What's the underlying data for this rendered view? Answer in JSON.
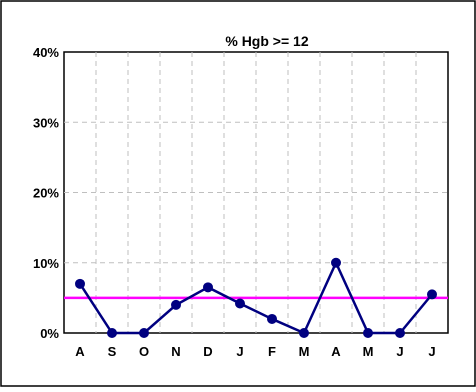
{
  "chart_data": {
    "type": "line",
    "title": "% Hgb >= 12",
    "xlabel": "",
    "ylabel": "",
    "categories": [
      "A",
      "S",
      "O",
      "N",
      "D",
      "J",
      "F",
      "M",
      "A",
      "M",
      "J",
      "J"
    ],
    "series": [
      {
        "values": [
          7,
          0,
          0,
          4,
          6.5,
          4.2,
          2,
          0,
          10,
          0,
          0,
          5.5
        ],
        "color": "#000080"
      }
    ],
    "reference_line": {
      "value": 5,
      "color": "#ff00ff"
    },
    "ylim": [
      0,
      40
    ],
    "yticks": [
      0,
      10,
      20,
      30,
      40
    ],
    "ytick_labels": [
      "0%",
      "10%",
      "20%",
      "30%",
      "40%"
    ],
    "grid": true,
    "legend": "none"
  }
}
